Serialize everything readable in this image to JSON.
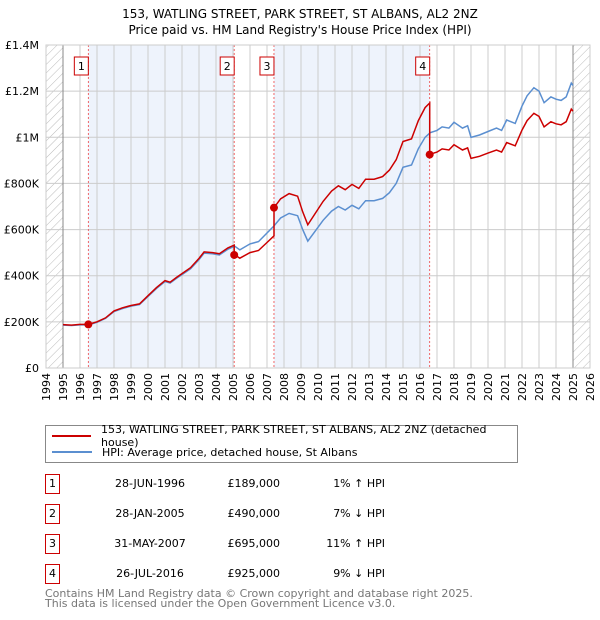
{
  "chart_data": {
    "type": "line",
    "title": "153, WATLING STREET, PARK STREET, ST ALBANS, AL2 2NZ",
    "subtitle": "Price paid vs. HM Land Registry's House Price Index (HPI)",
    "xlim": [
      1994,
      2026
    ],
    "ylim": [
      0,
      1400000
    ],
    "x_ticks": [
      "1994",
      "1995",
      "1996",
      "1997",
      "1998",
      "1999",
      "2000",
      "2001",
      "2002",
      "2003",
      "2004",
      "2005",
      "2006",
      "2007",
      "2008",
      "2009",
      "2010",
      "2011",
      "2012",
      "2013",
      "2014",
      "2015",
      "2016",
      "2017",
      "2018",
      "2019",
      "2020",
      "2021",
      "2022",
      "2023",
      "2024",
      "2025",
      "2026"
    ],
    "y_ticks": [
      {
        "v": 0,
        "label": "£0"
      },
      {
        "v": 200000,
        "label": "£200K"
      },
      {
        "v": 400000,
        "label": "£400K"
      },
      {
        "v": 600000,
        "label": "£600K"
      },
      {
        "v": 800000,
        "label": "£800K"
      },
      {
        "v": 1000000,
        "label": "£1M"
      },
      {
        "v": 1200000,
        "label": "£1.2M"
      },
      {
        "v": 1400000,
        "label": "£1.4M"
      }
    ],
    "data_range": [
      1995,
      2025
    ],
    "hpi": {
      "name": "HPI: Average price, detached house, St Albans",
      "color": "#5b8fd0",
      "points": [
        [
          1995,
          186000
        ],
        [
          1995.5,
          184000
        ],
        [
          1996,
          187000
        ],
        [
          1996.5,
          187000
        ],
        [
          1997,
          198000
        ],
        [
          1997.5,
          215000
        ],
        [
          1998,
          245000
        ],
        [
          1998.5,
          258000
        ],
        [
          1999,
          268000
        ],
        [
          1999.5,
          275000
        ],
        [
          2000,
          310000
        ],
        [
          2000.5,
          345000
        ],
        [
          2001,
          375000
        ],
        [
          2001.3,
          368000
        ],
        [
          2001.7,
          390000
        ],
        [
          2002,
          405000
        ],
        [
          2002.5,
          430000
        ],
        [
          2003,
          470000
        ],
        [
          2003.3,
          498000
        ],
        [
          2003.8,
          495000
        ],
        [
          2004.2,
          490000
        ],
        [
          2004.7,
          515000
        ],
        [
          2005.1,
          528000
        ],
        [
          2005.4,
          512000
        ],
        [
          2006,
          538000
        ],
        [
          2006.5,
          548000
        ],
        [
          2007,
          585000
        ],
        [
          2007.4,
          615000
        ],
        [
          2007.8,
          650000
        ],
        [
          2008.3,
          670000
        ],
        [
          2008.8,
          660000
        ],
        [
          2009.1,
          600000
        ],
        [
          2009.4,
          550000
        ],
        [
          2009.8,
          590000
        ],
        [
          2010.3,
          640000
        ],
        [
          2010.8,
          680000
        ],
        [
          2011.2,
          700000
        ],
        [
          2011.6,
          685000
        ],
        [
          2012,
          705000
        ],
        [
          2012.4,
          690000
        ],
        [
          2012.8,
          725000
        ],
        [
          2013.3,
          725000
        ],
        [
          2013.8,
          735000
        ],
        [
          2014.2,
          760000
        ],
        [
          2014.6,
          800000
        ],
        [
          2015,
          870000
        ],
        [
          2015.5,
          880000
        ],
        [
          2015.9,
          950000
        ],
        [
          2016.3,
          1000000
        ],
        [
          2016.6,
          1020000
        ],
        [
          2017,
          1030000
        ],
        [
          2017.3,
          1045000
        ],
        [
          2017.7,
          1040000
        ],
        [
          2018,
          1065000
        ],
        [
          2018.5,
          1040000
        ],
        [
          2018.8,
          1050000
        ],
        [
          2019,
          1000000
        ],
        [
          2019.5,
          1010000
        ],
        [
          2020,
          1025000
        ],
        [
          2020.5,
          1040000
        ],
        [
          2020.8,
          1030000
        ],
        [
          2021.1,
          1075000
        ],
        [
          2021.6,
          1060000
        ],
        [
          2022,
          1135000
        ],
        [
          2022.3,
          1180000
        ],
        [
          2022.7,
          1215000
        ],
        [
          2023,
          1200000
        ],
        [
          2023.3,
          1150000
        ],
        [
          2023.7,
          1175000
        ],
        [
          2024,
          1165000
        ],
        [
          2024.3,
          1160000
        ],
        [
          2024.6,
          1175000
        ],
        [
          2024.9,
          1235000
        ],
        [
          2025,
          1225000
        ]
      ]
    },
    "property": {
      "name": "153, WATLING STREET, PARK STREET, ST ALBANS, AL2 2NZ (detached house)",
      "color": "#cc0000"
    },
    "sales": [
      {
        "id": "1",
        "x": 1996.49,
        "y": 189000
      },
      {
        "id": "2",
        "x": 2005.07,
        "y": 490000
      },
      {
        "id": "3",
        "x": 2007.41,
        "y": 695000
      },
      {
        "id": "4",
        "x": 2016.57,
        "y": 925000
      }
    ]
  },
  "legend": {
    "property": "153, WATLING STREET, PARK STREET, ST ALBANS, AL2 2NZ (detached house)",
    "hpi": "HPI: Average price, detached house, St Albans"
  },
  "transactions": [
    {
      "num": "1",
      "date": "28-JUN-1996",
      "price": "£189,000",
      "pct": "1% ↑ HPI"
    },
    {
      "num": "2",
      "date": "28-JAN-2005",
      "price": "£490,000",
      "pct": "7% ↓ HPI"
    },
    {
      "num": "3",
      "date": "31-MAY-2007",
      "price": "£695,000",
      "pct": "11% ↑ HPI"
    },
    {
      "num": "4",
      "date": "26-JUL-2016",
      "price": "£925,000",
      "pct": "9% ↓ HPI"
    }
  ],
  "footer": {
    "line1": "Contains HM Land Registry data © Crown copyright and database right 2025.",
    "line2": "This data is licensed under the Open Government Licence v3.0."
  }
}
